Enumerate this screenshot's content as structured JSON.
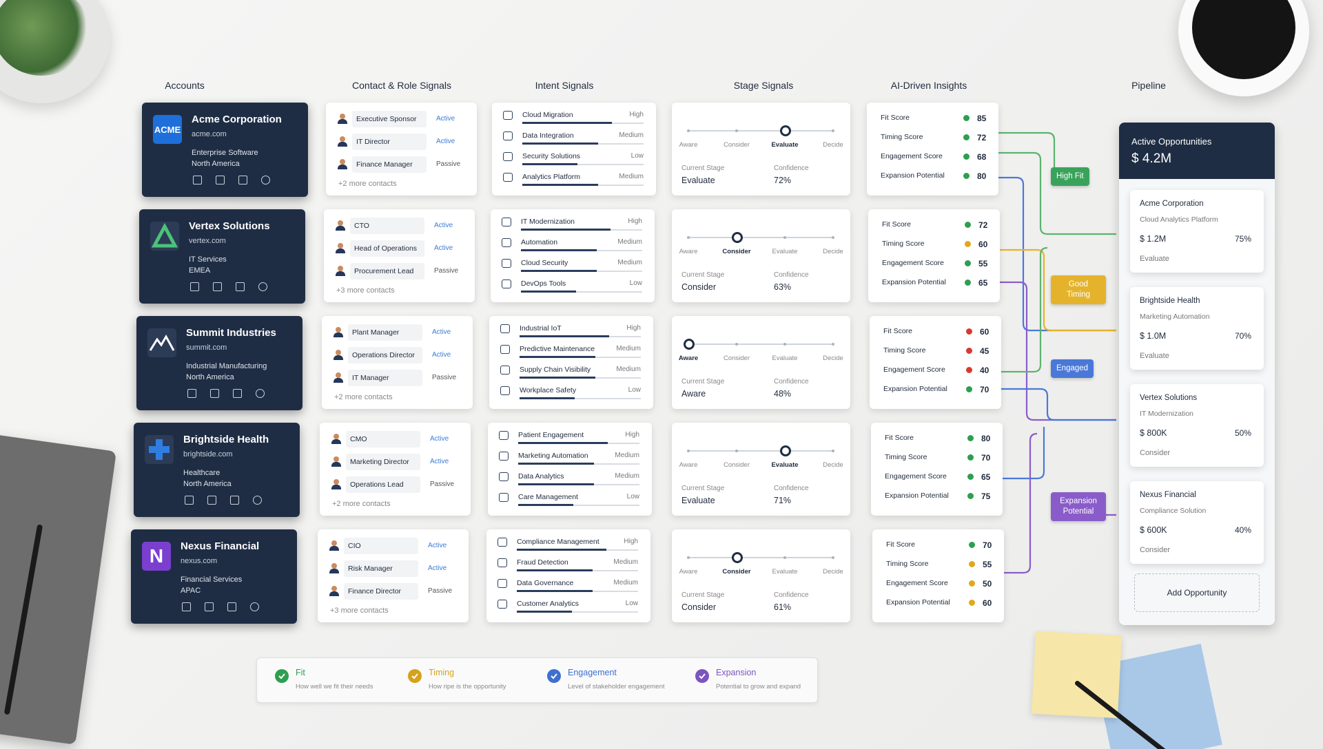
{
  "column_headers": [
    "Accounts",
    "Contact & Role Signals",
    "Intent Signals",
    "Stage Signals",
    "AI-Driven Insights",
    "Pipeline"
  ],
  "accounts": [
    {
      "name": "Acme Corporation",
      "domain": "acme.com",
      "industry": "Enterprise Software",
      "region": "North America",
      "logo": "ACME"
    },
    {
      "name": "Vertex Solutions",
      "domain": "vertex.com",
      "industry": "IT Services",
      "region": "EMEA"
    },
    {
      "name": "Summit Industries",
      "domain": "summit.com",
      "industry": "Industrial Manufacturing",
      "region": "North America"
    },
    {
      "name": "Brightside Health",
      "domain": "brightside.com",
      "industry": "Healthcare",
      "region": "North America"
    },
    {
      "name": "Nexus Financial",
      "domain": "nexus.com",
      "industry": "Financial Services",
      "region": "APAC",
      "logo": "N"
    }
  ],
  "contacts": [
    {
      "people": [
        {
          "role": "Executive Sponsor",
          "status": "Active"
        },
        {
          "role": "IT Director",
          "status": "Active"
        },
        {
          "role": "Finance Manager",
          "status": "Passive"
        }
      ],
      "more": "+2 more contacts"
    },
    {
      "people": [
        {
          "role": "CTO",
          "status": "Active"
        },
        {
          "role": "Head of Operations",
          "status": "Active"
        },
        {
          "role": "Procurement Lead",
          "status": "Passive"
        }
      ],
      "more": "+3 more contacts"
    },
    {
      "people": [
        {
          "role": "Plant Manager",
          "status": "Active"
        },
        {
          "role": "Operations Director",
          "status": "Active"
        },
        {
          "role": "IT Manager",
          "status": "Passive"
        }
      ],
      "more": "+2 more contacts"
    },
    {
      "people": [
        {
          "role": "CMO",
          "status": "Active"
        },
        {
          "role": "Marketing Director",
          "status": "Active"
        },
        {
          "role": "Operations Lead",
          "status": "Passive"
        }
      ],
      "more": "+2 more contacts"
    },
    {
      "people": [
        {
          "role": "CIO",
          "status": "Active"
        },
        {
          "role": "Risk Manager",
          "status": "Active"
        },
        {
          "role": "Finance Director",
          "status": "Passive"
        }
      ],
      "more": "+3 more contacts"
    }
  ],
  "intent_signals": [
    {
      "signals": [
        {
          "topic": "Cloud Migration",
          "level": "High"
        },
        {
          "topic": "Data Integration",
          "level": "Medium"
        },
        {
          "topic": "Security Solutions",
          "level": "Low"
        },
        {
          "topic": "Analytics Platform",
          "level": "Medium"
        }
      ]
    },
    {
      "signals": [
        {
          "topic": "IT Modernization",
          "level": "High"
        },
        {
          "topic": "Automation",
          "level": "Medium"
        },
        {
          "topic": "Cloud Security",
          "level": "Medium"
        },
        {
          "topic": "DevOps Tools",
          "level": "Low"
        }
      ]
    },
    {
      "signals": [
        {
          "topic": "Industrial IoT",
          "level": "High"
        },
        {
          "topic": "Predictive Maintenance",
          "level": "Medium"
        },
        {
          "topic": "Supply Chain Visibility",
          "level": "Medium"
        },
        {
          "topic": "Workplace Safety",
          "level": "Low"
        }
      ]
    },
    {
      "signals": [
        {
          "topic": "Patient Engagement",
          "level": "High"
        },
        {
          "topic": "Marketing Automation",
          "level": "Medium"
        },
        {
          "topic": "Data Analytics",
          "level": "Medium"
        },
        {
          "topic": "Care Management",
          "level": "Low"
        }
      ]
    },
    {
      "signals": [
        {
          "topic": "Compliance Management",
          "level": "High"
        },
        {
          "topic": "Fraud Detection",
          "level": "Medium"
        },
        {
          "topic": "Data Governance",
          "level": "Medium"
        },
        {
          "topic": "Customer Analytics",
          "level": "Low"
        }
      ]
    }
  ],
  "stage_signals": [
    {
      "stages": [
        "Aware",
        "Consider",
        "Evaluate",
        "Decide"
      ],
      "current_label": "Current Stage",
      "current": "Evaluate",
      "confidence_label": "Confidence",
      "confidence": "72%"
    },
    {
      "stages": [
        "Aware",
        "Consider",
        "Evaluate",
        "Decide"
      ],
      "current_label": "Current Stage",
      "current": "Consider",
      "confidence_label": "Confidence",
      "confidence": "63%"
    },
    {
      "stages": [
        "Aware",
        "Consider",
        "Evaluate",
        "Decide"
      ],
      "current_label": "Current Stage",
      "current": "Aware",
      "confidence_label": "Confidence",
      "confidence": "48%"
    },
    {
      "stages": [
        "Aware",
        "Consider",
        "Evaluate",
        "Decide"
      ],
      "current_label": "Current Stage",
      "current": "Evaluate",
      "confidence_label": "Confidence",
      "confidence": "71%"
    },
    {
      "stages": [
        "Aware",
        "Consider",
        "Evaluate",
        "Decide"
      ],
      "current_label": "Current Stage",
      "current": "Consider",
      "confidence_label": "Confidence",
      "confidence": "61%"
    }
  ],
  "insights": [
    {
      "metrics": [
        {
          "label": "Fit Score",
          "score": 85,
          "color": "#2e9e4f"
        },
        {
          "label": "Timing Score",
          "score": 72,
          "color": "#2e9e4f"
        },
        {
          "label": "Engagement Score",
          "score": 68,
          "color": "#2e9e4f"
        },
        {
          "label": "Expansion Potential",
          "score": 80,
          "color": "#2e9e4f"
        }
      ]
    },
    {
      "metrics": [
        {
          "label": "Fit Score",
          "score": 72,
          "color": "#2e9e4f"
        },
        {
          "label": "Timing Score",
          "score": 60,
          "color": "#e0a91b"
        },
        {
          "label": "Engagement Score",
          "score": 55,
          "color": "#2e9e4f"
        },
        {
          "label": "Expansion Potential",
          "score": 65,
          "color": "#2e9e4f"
        }
      ]
    },
    {
      "metrics": [
        {
          "label": "Fit Score",
          "score": 60,
          "color": "#d63a2f"
        },
        {
          "label": "Timing Score",
          "score": 45,
          "color": "#d63a2f"
        },
        {
          "label": "Engagement Score",
          "score": 40,
          "color": "#d63a2f"
        },
        {
          "label": "Expansion Potential",
          "score": 70,
          "color": "#2e9e4f"
        }
      ]
    },
    {
      "metrics": [
        {
          "label": "Fit Score",
          "score": 80,
          "color": "#2e9e4f"
        },
        {
          "label": "Timing Score",
          "score": 70,
          "color": "#2e9e4f"
        },
        {
          "label": "Engagement Score",
          "score": 65,
          "color": "#2e9e4f"
        },
        {
          "label": "Expansion Potential",
          "score": 75,
          "color": "#2e9e4f"
        }
      ]
    },
    {
      "metrics": [
        {
          "label": "Fit Score",
          "score": 70,
          "color": "#2e9e4f"
        },
        {
          "label": "Timing Score",
          "score": 55,
          "color": "#e0a91b"
        },
        {
          "label": "Engagement Score",
          "score": 50,
          "color": "#e0a91b"
        },
        {
          "label": "Expansion Potential",
          "score": 60,
          "color": "#e0a91b"
        }
      ]
    }
  ],
  "tags": [
    {
      "label": "High Fit",
      "color": "#3aa35b"
    },
    {
      "label": "Good Timing",
      "color": "#e5b32b"
    },
    {
      "label": "Engaged",
      "color": "#4a78d8"
    },
    {
      "label": "Expansion Potential",
      "color": "#8a5cc9"
    }
  ],
  "pipeline": {
    "title": "Active Opportunities",
    "total": "$ 4.2M",
    "opportunities": [
      {
        "account": "Acme Corporation",
        "product": "Cloud Analytics Platform",
        "amount": "$ 1.2M",
        "probability": "75%",
        "stage": "Evaluate"
      },
      {
        "account": "Brightside Health",
        "product": "Marketing Automation",
        "amount": "$ 1.0M",
        "probability": "70%",
        "stage": "Evaluate"
      },
      {
        "account": "Vertex Solutions",
        "product": "IT Modernization",
        "amount": "$ 800K",
        "probability": "50%",
        "stage": "Consider"
      },
      {
        "account": "Nexus Financial",
        "product": "Compliance Solution",
        "amount": "$ 600K",
        "probability": "40%",
        "stage": "Consider"
      }
    ],
    "add_button": "Add Opportunity"
  },
  "legend": [
    {
      "title": "Fit",
      "description": "How well we fit their needs",
      "color": "#2e9e4f"
    },
    {
      "title": "Timing",
      "description": "How ripe is the opportunity",
      "color": "#d4a21c"
    },
    {
      "title": "Engagement",
      "description": "Level of stakeholder engagement",
      "color": "#3f6fd0"
    },
    {
      "title": "Expansion",
      "description": "Potential to grow and expand",
      "color": "#7b55c0"
    }
  ]
}
